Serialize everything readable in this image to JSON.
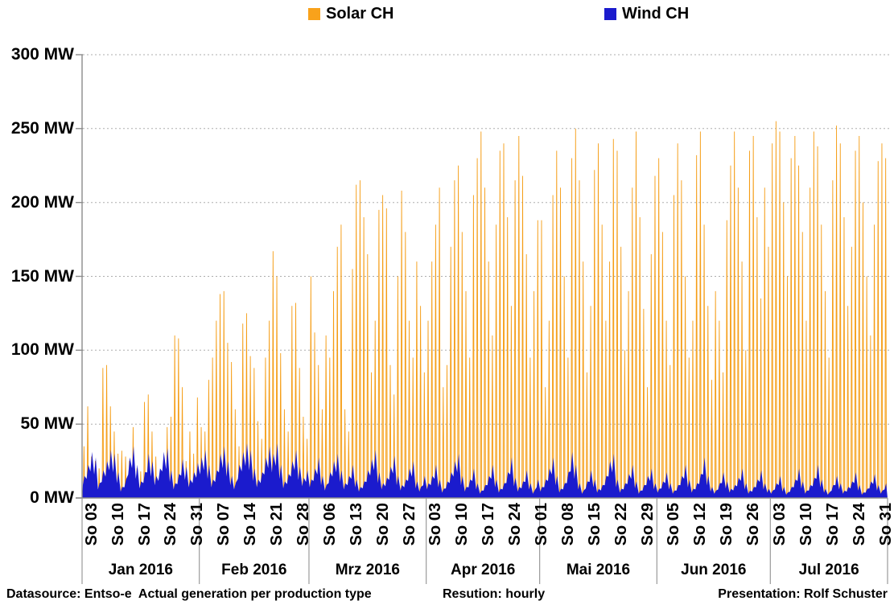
{
  "legend": [
    {
      "label": "Solar CH",
      "color": "#f9a21b"
    },
    {
      "label": "Wind CH",
      "color": "#1b1bcd"
    }
  ],
  "footer": {
    "datasource": "Datasource: Entso-e  Actual generation per production type",
    "resolution": "Resution: hourly",
    "presentation": "Presentation: Rolf Schuster"
  },
  "chart_data": {
    "type": "area",
    "title": "",
    "xlabel": "",
    "ylabel": "MW",
    "y_unit": "MW",
    "ylim": [
      0,
      300
    ],
    "y_ticks": [
      0,
      50,
      100,
      150,
      200,
      250,
      300
    ],
    "grid": "horizontal dotted",
    "legend_position": "top",
    "time_range": "Jan 2016 - Jul 2016",
    "resolution_note": "hourly data; encoded here as one solar midday peak and one wind mean level per day",
    "months": [
      {
        "label": "Jan 2016",
        "days": 31,
        "sundays": [
          {
            "label": "So 03",
            "day": 3
          },
          {
            "label": "So 10",
            "day": 10
          },
          {
            "label": "So 17",
            "day": 17
          },
          {
            "label": "So 24",
            "day": 24
          },
          {
            "label": "So 31",
            "day": 31
          }
        ]
      },
      {
        "label": "Feb 2016",
        "days": 29,
        "sundays": [
          {
            "label": "So 07",
            "day": 7
          },
          {
            "label": "So 14",
            "day": 14
          },
          {
            "label": "So 21",
            "day": 21
          },
          {
            "label": "So 28",
            "day": 28
          }
        ]
      },
      {
        "label": "Mrz 2016",
        "days": 31,
        "sundays": [
          {
            "label": "So 06",
            "day": 6
          },
          {
            "label": "So 13",
            "day": 13
          },
          {
            "label": "So 20",
            "day": 20
          },
          {
            "label": "So 27",
            "day": 27
          }
        ]
      },
      {
        "label": "Apr 2016",
        "days": 30,
        "sundays": [
          {
            "label": "So 03",
            "day": 3
          },
          {
            "label": "So 10",
            "day": 10
          },
          {
            "label": "So 17",
            "day": 17
          },
          {
            "label": "So 24",
            "day": 24
          }
        ]
      },
      {
        "label": "Mai 2016",
        "days": 31,
        "sundays": [
          {
            "label": "So 01",
            "day": 1
          },
          {
            "label": "So 08",
            "day": 8
          },
          {
            "label": "So 15",
            "day": 15
          },
          {
            "label": "So 22",
            "day": 22
          },
          {
            "label": "So 29",
            "day": 29
          }
        ]
      },
      {
        "label": "Jun 2016",
        "days": 30,
        "sundays": [
          {
            "label": "So 05",
            "day": 5
          },
          {
            "label": "So 12",
            "day": 12
          },
          {
            "label": "So 19",
            "day": 19
          },
          {
            "label": "So 26",
            "day": 26
          }
        ]
      },
      {
        "label": "Jul 2016",
        "days": 31,
        "sundays": [
          {
            "label": "So 03",
            "day": 3
          },
          {
            "label": "So 10",
            "day": 10
          },
          {
            "label": "So 17",
            "day": 17
          },
          {
            "label": "So 24",
            "day": 24
          },
          {
            "label": "So 31",
            "day": 31
          }
        ]
      }
    ],
    "series": [
      {
        "name": "Solar CH",
        "color": "#f59d15",
        "fill": "#fbd493",
        "daily_peaks_mw": [
          35,
          62,
          28,
          25,
          20,
          88,
          90,
          62,
          45,
          30,
          32,
          28,
          25,
          48,
          20,
          18,
          65,
          70,
          45,
          28,
          15,
          12,
          48,
          55,
          110,
          108,
          75,
          25,
          45,
          30,
          68,
          48,
          45,
          80,
          95,
          120,
          138,
          140,
          105,
          92,
          60,
          35,
          118,
          125,
          96,
          88,
          52,
          40,
          95,
          120,
          167,
          150,
          98,
          60,
          45,
          130,
          132,
          88,
          55,
          40,
          150,
          112,
          90,
          60,
          110,
          95,
          140,
          170,
          185,
          60,
          45,
          155,
          212,
          215,
          190,
          165,
          85,
          120,
          195,
          205,
          196,
          90,
          70,
          150,
          208,
          180,
          120,
          95,
          160,
          130,
          85,
          120,
          160,
          185,
          210,
          75,
          90,
          170,
          215,
          225,
          180,
          140,
          95,
          205,
          230,
          248,
          210,
          160,
          110,
          185,
          235,
          240,
          190,
          130,
          215,
          245,
          218,
          165,
          95,
          140,
          188,
          188,
          75,
          120,
          205,
          235,
          210,
          150,
          95,
          230,
          250,
          215,
          160,
          85,
          130,
          222,
          240,
          185,
          120,
          160,
          243,
          235,
          170,
          100,
          140,
          210,
          248,
          190,
          128,
          75,
          165,
          218,
          230,
          180,
          120,
          90,
          205,
          240,
          215,
          150,
          95,
          120,
          232,
          248,
          185,
          130,
          80,
          140,
          120,
          85,
          188,
          225,
          248,
          210,
          160,
          100,
          235,
          245,
          190,
          135,
          210,
          170,
          240,
          255,
          248,
          200,
          150,
          230,
          245,
          225,
          180,
          120,
          210,
          248,
          238,
          185,
          140,
          95,
          215,
          252,
          240,
          190,
          130,
          170,
          235,
          245,
          200,
          150,
          110,
          185,
          228,
          240,
          230
        ]
      },
      {
        "name": "Wind CH",
        "color": "#1b1bcd",
        "daily_mean_mw": [
          12,
          18,
          25,
          22,
          8,
          15,
          20,
          26,
          24,
          14,
          6,
          10,
          22,
          28,
          18,
          9,
          14,
          24,
          20,
          12,
          16,
          25,
          27,
          15,
          8,
          13,
          21,
          17,
          10,
          14,
          19,
          22,
          26,
          18,
          10,
          15,
          24,
          28,
          20,
          12,
          8,
          18,
          25,
          30,
          26,
          16,
          10,
          14,
          22,
          28,
          24,
          30,
          18,
          9,
          13,
          20,
          26,
          17,
          11,
          15,
          10,
          16,
          22,
          12,
          7,
          14,
          20,
          24,
          15,
          8,
          12,
          18,
          10,
          6,
          9,
          15,
          21,
          26,
          14,
          8,
          11,
          17,
          23,
          12,
          7,
          10,
          16,
          20,
          9,
          6,
          12,
          8,
          12,
          18,
          10,
          5,
          9,
          14,
          20,
          24,
          12,
          6,
          10,
          16,
          8,
          4,
          7,
          12,
          18,
          10,
          5,
          8,
          14,
          22,
          11,
          6,
          9,
          15,
          8,
          4,
          10,
          6,
          10,
          16,
          22,
          12,
          5,
          8,
          14,
          25,
          18,
          8,
          4,
          9,
          15,
          10,
          5,
          7,
          12,
          20,
          24,
          10,
          5,
          8,
          13,
          18,
          9,
          4,
          7,
          12,
          16,
          8,
          5,
          9,
          14,
          8,
          4,
          7,
          12,
          18,
          10,
          5,
          8,
          13,
          22,
          12,
          6,
          4,
          8,
          14,
          9,
          5,
          7,
          11,
          16,
          8,
          4,
          6,
          10,
          15,
          8,
          5,
          4,
          8,
          12,
          6,
          3,
          6,
          10,
          16,
          9,
          4,
          7,
          11,
          18,
          10,
          5,
          3,
          7,
          12,
          8,
          4,
          6,
          9,
          14,
          7,
          3,
          5,
          9,
          13,
          7,
          4,
          8
        ]
      }
    ]
  }
}
